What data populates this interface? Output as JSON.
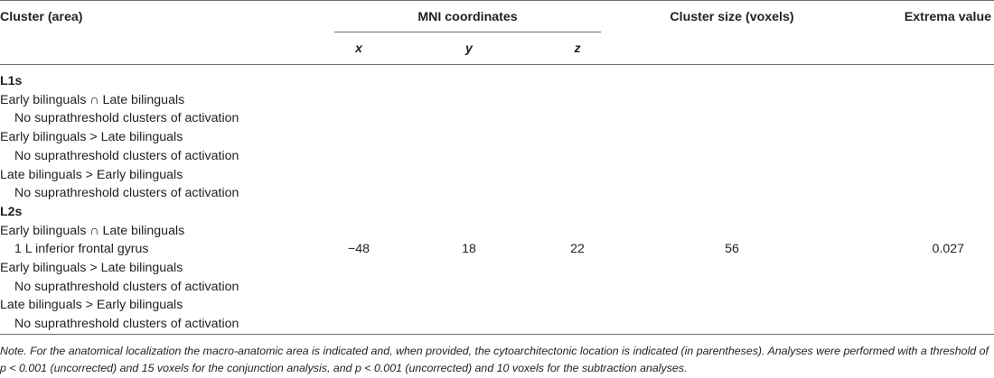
{
  "header": {
    "col_cluster": "Cluster (area)",
    "col_mni": "MNI coordinates",
    "col_size": "Cluster size (voxels)",
    "col_extrema": "Extrema value",
    "sub_x": "x",
    "sub_y": "y",
    "sub_z": "z"
  },
  "rows": [
    {
      "label": "L1s",
      "bold": true,
      "indent": 0
    },
    {
      "label": "Early bilinguals ∩ Late bilinguals",
      "bold": false,
      "indent": 0
    },
    {
      "label": "No suprathreshold clusters of activation",
      "bold": false,
      "indent": 1
    },
    {
      "label": "Early bilinguals > Late bilinguals",
      "bold": false,
      "indent": 0
    },
    {
      "label": "No suprathreshold clusters of activation",
      "bold": false,
      "indent": 1
    },
    {
      "label": "Late bilinguals > Early bilinguals",
      "bold": false,
      "indent": 0
    },
    {
      "label": "No suprathreshold clusters of activation",
      "bold": false,
      "indent": 1
    },
    {
      "label": "L2s",
      "bold": true,
      "indent": 0
    },
    {
      "label": "Early bilinguals ∩ Late bilinguals",
      "bold": false,
      "indent": 0
    },
    {
      "label": "1 L inferior frontal gyrus",
      "bold": false,
      "indent": 1,
      "x": "−48",
      "y": "18",
      "z": "22",
      "size": "56",
      "extrema": "0.027"
    },
    {
      "label": "Early bilinguals > Late bilinguals",
      "bold": false,
      "indent": 0
    },
    {
      "label": "No suprathreshold clusters of activation",
      "bold": false,
      "indent": 1
    },
    {
      "label": "Late bilinguals > Early bilinguals",
      "bold": false,
      "indent": 0
    },
    {
      "label": "No suprathreshold clusters of activation",
      "bold": false,
      "indent": 1
    }
  ],
  "note": {
    "lead": "Note.",
    "text": " For the anatomical localization the macro-anatomic area is indicated and, when provided, the cytoarchitectonic location is indicated (in parentheses). Analyses were performed with a threshold of p < 0.001 (uncorrected) and 15 voxels for the conjunction analysis, and p < 0.001 (uncorrected) and 10 voxels for the subtraction analyses."
  }
}
